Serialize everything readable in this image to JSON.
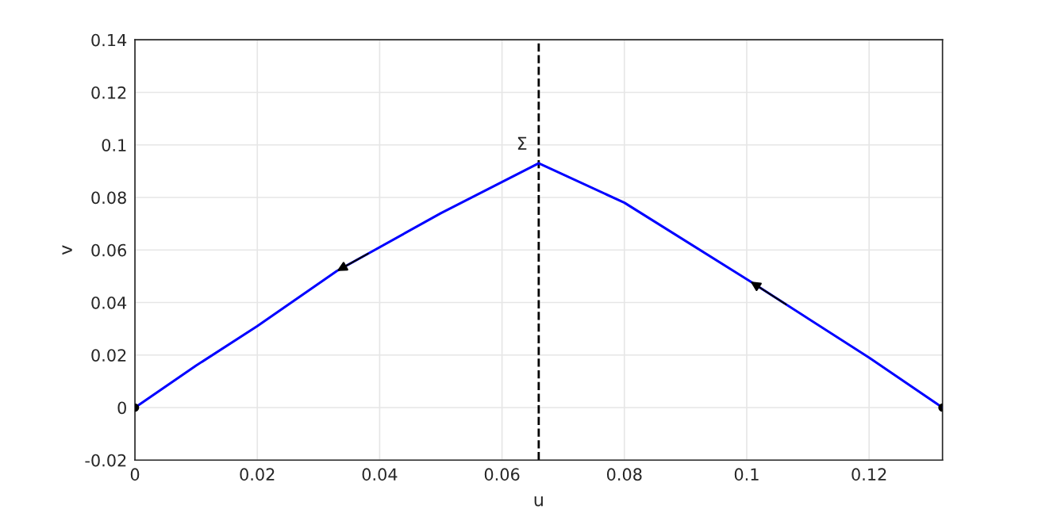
{
  "chart_data": {
    "type": "line",
    "xlabel": "u",
    "ylabel": "v",
    "xlim": [
      0,
      0.132
    ],
    "ylim": [
      -0.02,
      0.14
    ],
    "xticks": [
      0,
      0.02,
      0.04,
      0.06,
      0.08,
      0.1,
      0.12
    ],
    "yticks": [
      -0.02,
      0,
      0.02,
      0.04,
      0.06,
      0.08,
      0.1,
      0.12,
      0.14
    ],
    "grid": true,
    "series": [
      {
        "color": "#0000ff",
        "x": [
          0,
          0.01,
          0.02,
          0.033,
          0.05,
          0.066,
          0.08,
          0.1006,
          0.12,
          0.132
        ],
        "values": [
          0,
          0.016,
          0.031,
          0.052,
          0.074,
          0.093,
          0.078,
          0.048,
          0.019,
          0
        ]
      },
      {
        "type": "scatter",
        "color": "#000000",
        "x": [
          0,
          0.132
        ],
        "values": [
          0,
          0
        ]
      }
    ],
    "ref_lines": [
      {
        "axis": "x",
        "value": 0.066,
        "label": "Σ",
        "color": "#000000",
        "line_style": "dashed"
      }
    ]
  }
}
